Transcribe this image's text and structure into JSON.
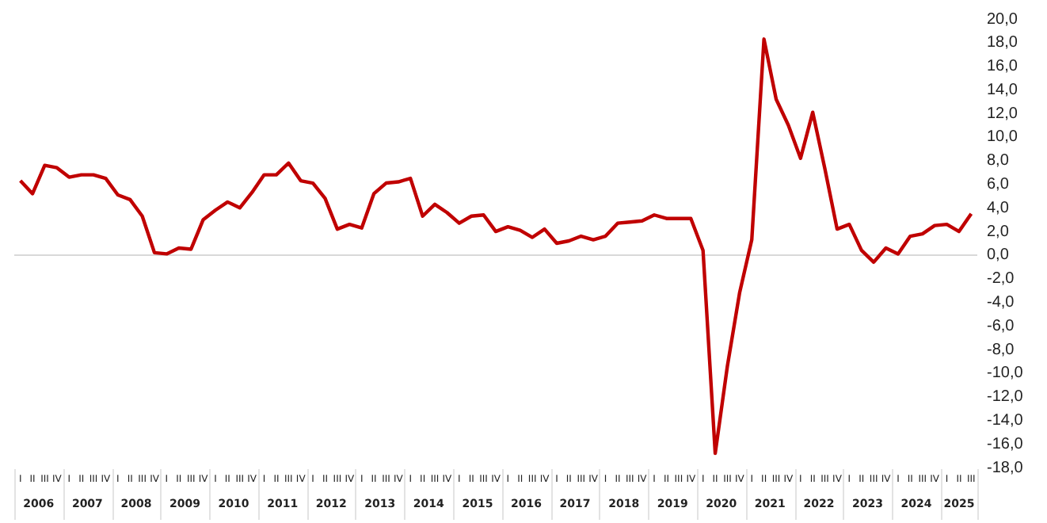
{
  "chart_data": {
    "type": "line",
    "categories": [
      "I",
      "II",
      "III",
      "IV",
      "I",
      "II",
      "III",
      "IV",
      "I",
      "II",
      "III",
      "IV",
      "I",
      "II",
      "III",
      "IV",
      "I",
      "II",
      "III",
      "IV",
      "I",
      "II",
      "III",
      "IV",
      "I",
      "II",
      "III",
      "IV",
      "I",
      "II",
      "III",
      "IV",
      "I",
      "II",
      "III",
      "IV",
      "I",
      "II",
      "III",
      "IV",
      "I",
      "II",
      "III",
      "IV",
      "I",
      "II",
      "III",
      "IV",
      "I",
      "II",
      "III",
      "IV",
      "I",
      "II",
      "III",
      "IV",
      "I",
      "II",
      "III",
      "IV",
      "I",
      "II",
      "III",
      "IV",
      "I",
      "II",
      "III",
      "IV",
      "I",
      "II",
      "III",
      "IV",
      "I",
      "II",
      "III",
      "IV",
      "I",
      "II",
      "III"
    ],
    "series": [
      {
        "color": "#c00000",
        "values": [
          6.3,
          5.2,
          7.6,
          7.4,
          6.6,
          6.8,
          6.8,
          6.5,
          5.1,
          4.7,
          3.3,
          0.2,
          0.1,
          0.6,
          0.5,
          3.0,
          3.8,
          4.5,
          4.0,
          5.3,
          6.8,
          6.8,
          7.8,
          6.3,
          6.1,
          4.8,
          2.2,
          2.6,
          2.3,
          5.2,
          6.1,
          6.2,
          6.5,
          3.3,
          4.3,
          3.6,
          2.7,
          3.3,
          3.4,
          2.0,
          2.4,
          2.1,
          1.5,
          2.2,
          1.0,
          1.2,
          1.6,
          1.3,
          1.6,
          2.7,
          2.8,
          2.9,
          3.4,
          3.1,
          3.1,
          3.1,
          0.4,
          -16.8,
          -9.4,
          -3.2,
          1.3,
          18.3,
          13.2,
          11.0,
          8.2,
          12.1,
          7.3,
          2.2,
          2.6,
          0.4,
          -0.6,
          0.6,
          0.1,
          1.6,
          1.8,
          2.5,
          2.6,
          2.0,
          3.5
        ]
      }
    ],
    "ylim": [
      -18,
      20
    ],
    "yticks": [
      {
        "value": 20,
        "label": "20,0"
      },
      {
        "value": 18,
        "label": "18,0"
      },
      {
        "value": 16,
        "label": "16,0"
      },
      {
        "value": 14,
        "label": "14,0"
      },
      {
        "value": 12,
        "label": "12,0"
      },
      {
        "value": 10,
        "label": "10,0"
      },
      {
        "value": 8,
        "label": "8,0"
      },
      {
        "value": 6,
        "label": "6,0"
      },
      {
        "value": 4,
        "label": "4,0"
      },
      {
        "value": 2,
        "label": "2,0"
      },
      {
        "value": 0,
        "label": "0,0"
      },
      {
        "value": -2,
        "label": "-2,0"
      },
      {
        "value": -4,
        "label": "-4,0"
      },
      {
        "value": -6,
        "label": "-6,0"
      },
      {
        "value": -8,
        "label": "-8,0"
      },
      {
        "value": -10,
        "label": "-10,0"
      },
      {
        "value": -12,
        "label": "-12,0"
      },
      {
        "value": -14,
        "label": "-14,0"
      },
      {
        "value": -16,
        "label": "-16,0"
      },
      {
        "value": -18,
        "label": "-18,0"
      }
    ],
    "annotations": [
      "2006",
      "2007",
      "2008",
      "2009",
      "2010",
      "2011",
      "2012",
      "2013",
      "2014",
      "2015",
      "2016",
      "2017",
      "2018",
      "2019",
      "2020",
      "2021",
      "2022",
      "2023",
      "2024",
      "2025"
    ],
    "ref_lines": [
      {
        "axis": "y",
        "value": 0,
        "color": "#d9d9d9"
      }
    ],
    "grid": false,
    "legend": false,
    "marker": "none",
    "line_style": "solid"
  }
}
